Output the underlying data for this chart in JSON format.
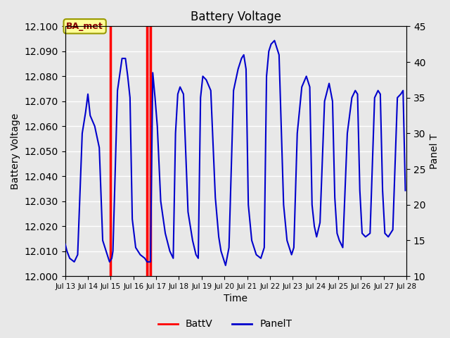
{
  "title": "Battery Voltage",
  "xlabel": "Time",
  "ylabel_left": "Battery Voltage",
  "ylabel_right": "Panel T",
  "ylim_left": [
    12.0,
    12.1
  ],
  "ylim_right": [
    10,
    45
  ],
  "yticks_left": [
    12.0,
    12.01,
    12.02,
    12.03,
    12.04,
    12.05,
    12.06,
    12.07,
    12.08,
    12.09,
    12.1
  ],
  "yticks_right": [
    10,
    15,
    20,
    25,
    30,
    35,
    40,
    45
  ],
  "bg_color": "#e8e8e8",
  "grid_color": "#ffffff",
  "annotation_text": "BA_met",
  "annotation_box_facecolor": "#ffff99",
  "annotation_box_edgecolor": "#999900",
  "annotation_text_color": "#8b0000",
  "red_line_color": "#ff0000",
  "blue_line_color": "#0000cc",
  "red_vline1": 2.0,
  "red_vline2": 3.6,
  "red_vline3": 3.75,
  "red_vspan": [
    3.6,
    3.75
  ],
  "xtick_labels": [
    "Jul 13",
    "Jul 14",
    "Jul 15",
    "Jul 16",
    "Jul 17",
    "Jul 18",
    "Jul 19",
    "Jul 20",
    "Jul 21",
    "Jul 22",
    "Jul 23",
    "Jul 24",
    "Jul 25",
    "Jul 26",
    "Jul 27",
    "Jul 28"
  ],
  "xtick_positions": [
    0,
    1,
    2,
    3,
    4,
    5,
    6,
    7,
    8,
    9,
    10,
    11,
    12,
    13,
    14,
    15
  ],
  "x_min": 0,
  "x_max": 15,
  "battv_value": 12.1,
  "panelT_data_x": [
    0.0,
    0.08,
    0.2,
    0.4,
    0.55,
    0.75,
    0.9,
    1.0,
    1.1,
    1.3,
    1.5,
    1.65,
    1.75,
    1.85,
    1.95,
    2.05,
    2.1,
    2.3,
    2.5,
    2.65,
    2.75,
    2.85,
    2.95,
    3.1,
    3.3,
    3.5,
    3.6,
    3.75,
    3.85,
    3.95,
    4.05,
    4.2,
    4.4,
    4.6,
    4.75,
    4.85,
    4.95,
    5.05,
    5.2,
    5.4,
    5.6,
    5.75,
    5.85,
    5.95,
    6.05,
    6.2,
    6.4,
    6.6,
    6.75,
    6.85,
    6.95,
    7.05,
    7.2,
    7.4,
    7.6,
    7.75,
    7.85,
    7.95,
    8.05,
    8.2,
    8.4,
    8.6,
    8.75,
    8.85,
    8.95,
    9.05,
    9.2,
    9.4,
    9.6,
    9.75,
    9.85,
    9.95,
    10.05,
    10.2,
    10.4,
    10.6,
    10.75,
    10.85,
    10.95,
    11.05,
    11.2,
    11.4,
    11.6,
    11.75,
    11.85,
    11.95,
    12.05,
    12.2,
    12.4,
    12.6,
    12.75,
    12.85,
    12.95,
    13.05,
    13.2,
    13.4,
    13.6,
    13.75,
    13.85,
    13.95,
    14.05,
    14.2,
    14.4,
    14.6,
    14.75,
    14.85,
    14.95
  ],
  "panelT_data_y": [
    14.5,
    13.5,
    12.5,
    12.0,
    13.0,
    30.0,
    33.0,
    35.5,
    32.5,
    31.0,
    28.0,
    15.0,
    14.0,
    13.0,
    12.0,
    12.5,
    13.5,
    36.0,
    40.5,
    40.5,
    38.0,
    35.0,
    18.0,
    14.0,
    13.0,
    12.5,
    12.0,
    12.0,
    38.5,
    35.0,
    31.0,
    20.5,
    16.0,
    13.5,
    12.5,
    30.0,
    35.5,
    36.5,
    35.5,
    19.0,
    15.0,
    13.0,
    12.5,
    35.0,
    38.0,
    37.5,
    36.0,
    21.0,
    15.5,
    13.5,
    12.5,
    11.5,
    14.0,
    36.0,
    39.0,
    40.5,
    41.0,
    39.0,
    20.0,
    15.0,
    13.0,
    12.5,
    14.0,
    38.0,
    41.5,
    42.5,
    43.0,
    41.0,
    20.0,
    15.0,
    14.0,
    13.0,
    14.0,
    30.0,
    36.5,
    38.0,
    36.5,
    20.0,
    17.0,
    15.5,
    17.5,
    34.5,
    37.0,
    34.5,
    21.0,
    16.0,
    15.0,
    14.0,
    30.0,
    35.0,
    36.0,
    35.5,
    22.0,
    16.0,
    15.5,
    16.0,
    35.0,
    36.0,
    35.5,
    22.0,
    16.0,
    15.5,
    16.5,
    35.0,
    35.5,
    36.0,
    22.0
  ]
}
